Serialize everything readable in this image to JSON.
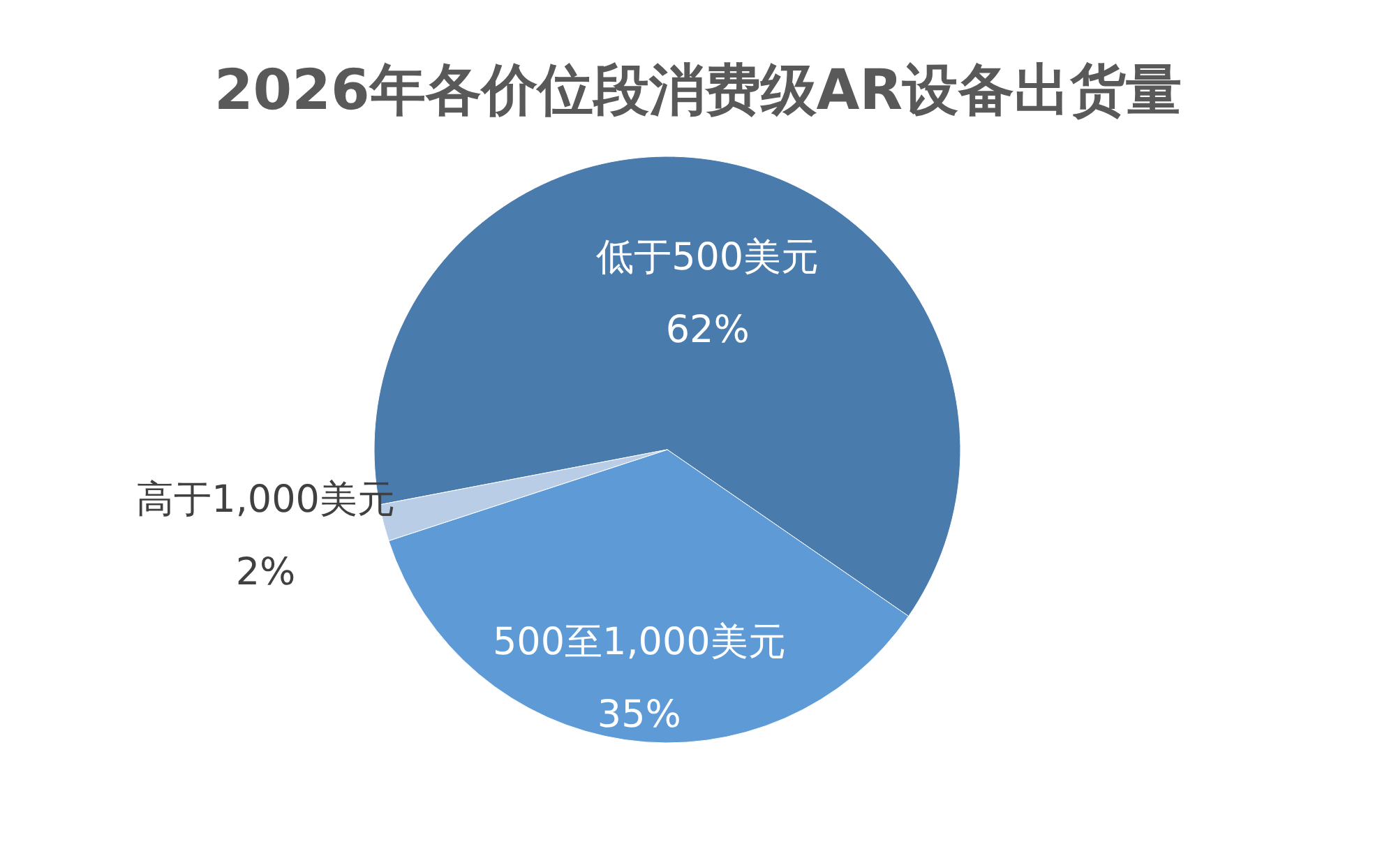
{
  "chart_data": {
    "type": "pie",
    "title": "2026年各价位段消费级AR设备出货量",
    "categories": [
      "低于500美元",
      "500至1,000美元",
      "高于1,000美元"
    ],
    "values": [
      62,
      35,
      2
    ],
    "value_labels": [
      "62%",
      "35%",
      "2%"
    ],
    "colors": [
      "#4a7bad",
      "#5e9bd6",
      "#b9cde6"
    ]
  }
}
